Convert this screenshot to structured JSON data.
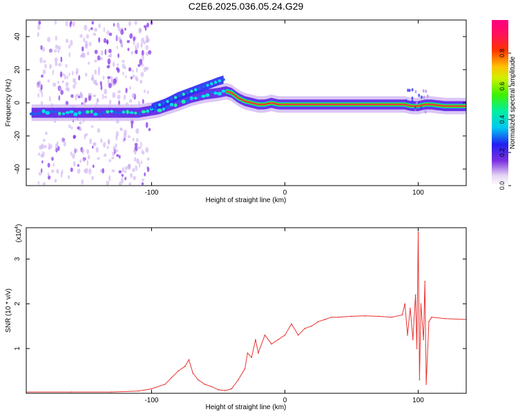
{
  "title": "C2E6.2025.036.05.24.G29",
  "chart_data": [
    {
      "type": "heatmap",
      "xlabel": "Height of straight line (km)",
      "ylabel": "Frequency (Hz)",
      "xlim": [
        -194,
        136
      ],
      "ylim": [
        -50,
        50
      ],
      "xticks": [
        -100,
        0,
        100
      ],
      "yticks": [
        -40,
        -20,
        0,
        20,
        40
      ],
      "ridge": {
        "x": [
          -190,
          -170,
          -150,
          -130,
          -110,
          -95,
          -80,
          -70,
          -60,
          -50,
          -44,
          -40,
          -35,
          -30,
          -25,
          -20,
          -15,
          -10,
          -5,
          0,
          10,
          20,
          30,
          40,
          50,
          60,
          70,
          80,
          90,
          95,
          100,
          105,
          110,
          120,
          136
        ],
        "y": [
          -6,
          -6,
          -6,
          -6,
          -6,
          -4,
          0,
          3,
          5,
          6,
          7,
          6,
          3,
          1,
          0,
          -1,
          -1,
          0,
          -1,
          -1,
          -1,
          -1,
          -1,
          -1,
          -1,
          -1,
          -1,
          -1,
          -1,
          -2,
          -2,
          -1,
          -1,
          -2,
          -2
        ]
      },
      "upper_branch": {
        "x": [
          -100,
          -90,
          -80,
          -70,
          -60,
          -50,
          -46
        ],
        "y": [
          -3,
          0,
          4,
          7,
          10,
          13,
          14
        ]
      },
      "colorbar": {
        "label": "Normalized spectral amplitude",
        "ticks": [
          "0.0",
          "0.2",
          "0.4",
          "0.6",
          "0.8"
        ],
        "range": [
          0,
          1
        ]
      },
      "grid": false
    },
    {
      "type": "line",
      "xlabel": "Height of straight line (km)",
      "ylabel": "SNR (10 * v/v)",
      "scale_label": "(x10",
      "scale_exponent": "4",
      "yunit_multiplier": 10000,
      "xlim": [
        -194,
        136
      ],
      "ylim": [
        0,
        3.7
      ],
      "xticks": [
        -100,
        0,
        100
      ],
      "yticks": [
        1,
        2,
        3
      ],
      "series": [
        {
          "color": "#e8322e",
          "x": [
            -194,
            -160,
            -130,
            -110,
            -100,
            -90,
            -85,
            -80,
            -75,
            -72,
            -69,
            -65,
            -60,
            -55,
            -50,
            -45,
            -40,
            -35,
            -30,
            -28,
            -25,
            -22,
            -20,
            -15,
            -10,
            -5,
            0,
            5,
            10,
            15,
            20,
            25,
            30,
            35,
            40,
            50,
            60,
            70,
            80,
            88,
            90,
            92,
            94,
            96,
            98,
            99,
            100,
            101,
            102,
            104,
            105,
            106,
            108,
            110,
            120,
            136
          ],
          "y": [
            0.03,
            0.03,
            0.03,
            0.05,
            0.1,
            0.2,
            0.35,
            0.5,
            0.6,
            0.75,
            0.45,
            0.3,
            0.2,
            0.15,
            0.08,
            0.06,
            0.1,
            0.3,
            0.55,
            0.9,
            0.8,
            1.2,
            0.9,
            1.3,
            1.1,
            1.2,
            1.3,
            1.55,
            1.3,
            1.45,
            1.5,
            1.6,
            1.65,
            1.7,
            1.7,
            1.72,
            1.73,
            1.72,
            1.7,
            1.75,
            2.0,
            1.3,
            1.9,
            1.2,
            2.2,
            1.0,
            3.6,
            0.3,
            2.0,
            1.2,
            2.5,
            0.2,
            1.6,
            1.7,
            1.67,
            1.65
          ]
        }
      ],
      "grid": false
    }
  ]
}
